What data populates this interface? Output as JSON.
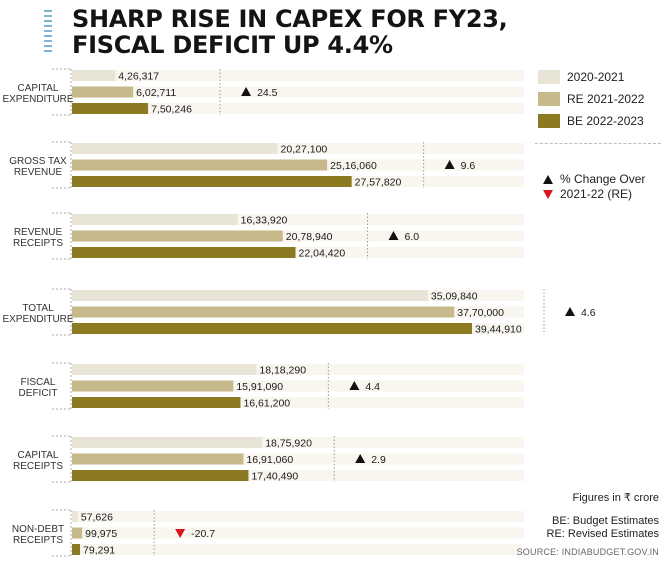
{
  "title": {
    "line1": "SHARP RISE IN CAPEX FOR FY23,",
    "line2": "FISCAL DEFICIT UP 4.4%"
  },
  "legend": {
    "series": [
      {
        "name": "2020-2021",
        "color": "#e9e5d6"
      },
      {
        "name": "RE 2021-2022",
        "color": "#c6b98a"
      },
      {
        "name": "BE 2022-2023",
        "color": "#8c7a23"
      }
    ],
    "change_line1": "% Change Over",
    "change_line2": "2021-22 (RE)",
    "up_color": "#111111",
    "down_color": "#d8141f"
  },
  "notes": {
    "units": "Figures in ₹ crore",
    "be": "BE: Budget Estimates",
    "re": "RE: Revised Estimates",
    "source": "SOURCE: INDIABUDGET.GOV.IN"
  },
  "chart_data": {
    "type": "bar",
    "orientation": "horizontal",
    "groups": [
      {
        "label": [
          "CAPITAL",
          "EXPENDITURE"
        ],
        "values": [
          426317,
          602711,
          750246
        ],
        "value_labels": [
          "4,26,317",
          "6,02,711",
          "7,50,246"
        ],
        "change": 24.5,
        "change_label": "24.5"
      },
      {
        "label": [
          "GROSS TAX",
          "REVENUE"
        ],
        "values": [
          2027100,
          2516060,
          2757820
        ],
        "value_labels": [
          "20,27,100",
          "25,16,060",
          "27,57,820"
        ],
        "change": 9.6,
        "change_label": "9.6"
      },
      {
        "label": [
          "REVENUE",
          "RECEIPTS"
        ],
        "values": [
          1633920,
          2078940,
          2204420
        ],
        "value_labels": [
          "16,33,920",
          "20,78,940",
          "22,04,420"
        ],
        "change": 6.0,
        "change_label": "6.0"
      },
      {
        "label": [
          "TOTAL",
          "EXPENDITURE"
        ],
        "values": [
          3509840,
          3770000,
          3944910
        ],
        "value_labels": [
          "35,09,840",
          "37,70,000",
          "39,44,910"
        ],
        "change": 4.6,
        "change_label": "4.6"
      },
      {
        "label": [
          "FISCAL",
          "DEFICIT"
        ],
        "values": [
          1818290,
          1591090,
          1661200
        ],
        "value_labels": [
          "18,18,290",
          "15,91,090",
          "16,61,200"
        ],
        "change": 4.4,
        "change_label": "4.4"
      },
      {
        "label": [
          "CAPITAL",
          "RECEIPTS"
        ],
        "values": [
          1875920,
          1691060,
          1740490
        ],
        "value_labels": [
          "18,75,920",
          "16,91,060",
          "17,40,490"
        ],
        "change": 2.9,
        "change_label": "2.9"
      },
      {
        "label": [
          "NON-DEBT",
          "RECEIPTS"
        ],
        "values": [
          57626,
          99975,
          79291
        ],
        "value_labels": [
          "57,626",
          "99,975",
          "79,291"
        ],
        "change": -20.7,
        "change_label": "-20.7"
      }
    ],
    "series": [
      "2020-2021",
      "RE 2021-2022",
      "BE 2022-2023"
    ],
    "grid": false,
    "legend_position": "right"
  }
}
